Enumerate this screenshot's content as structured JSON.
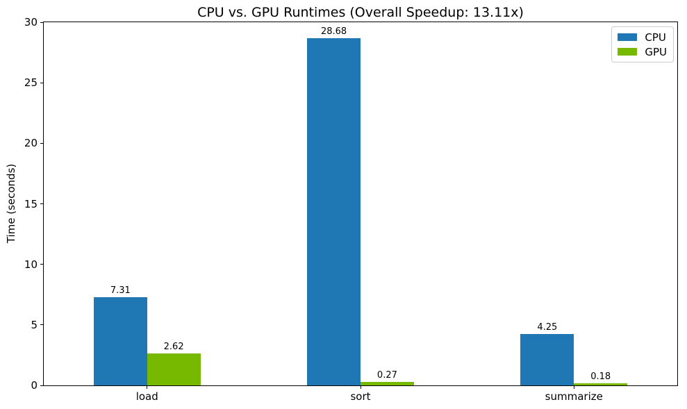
{
  "chart_data": {
    "type": "bar",
    "title": "CPU vs. GPU Runtimes (Overall Speedup: 13.11x)",
    "xlabel": "",
    "ylabel": "Time (seconds)",
    "categories": [
      "load",
      "sort",
      "summarize"
    ],
    "series": [
      {
        "name": "CPU",
        "color": "#1f77b4",
        "values": [
          7.31,
          28.68,
          4.25
        ],
        "labels": [
          "7.31",
          "28.68",
          "4.25"
        ]
      },
      {
        "name": "GPU",
        "color": "#76b900",
        "values": [
          2.62,
          0.27,
          0.18
        ],
        "labels": [
          "2.62",
          "0.27",
          "0.18"
        ]
      }
    ],
    "ylim": [
      0,
      30
    ],
    "yticks": [
      0,
      5,
      10,
      15,
      20,
      25,
      30
    ],
    "xlim": [
      -0.484,
      2.484
    ],
    "bar_width": 0.25,
    "grid": false,
    "legend_position": "upper right",
    "background": "#ffffff"
  }
}
